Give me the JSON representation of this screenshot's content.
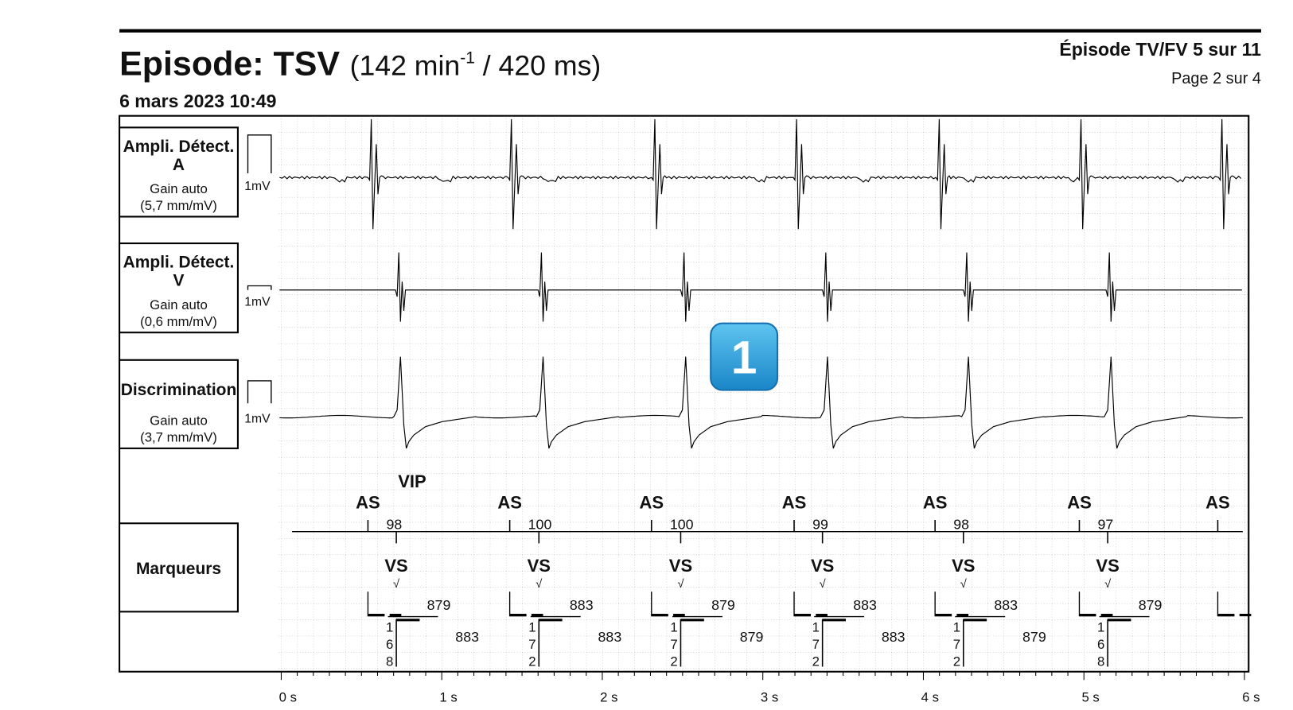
{
  "header": {
    "title": "Episode: TSV",
    "rate": [
      "(142 min",
      "-1",
      " / 420 ms)"
    ],
    "episode": "Épisode TV/FV 5 sur 11",
    "page": "Page 2 sur 4",
    "date": "6 mars 2023 10:49"
  },
  "channels": [
    {
      "title": "Ampli. Détect.",
      "sub": "A",
      "gain": "Gain auto",
      "scale": "(5,7 mm/mV)",
      "cal": "1mV"
    },
    {
      "title": "Ampli. Détect.",
      "sub": "V",
      "gain": "Gain auto",
      "scale": "(0,6 mm/mV)",
      "cal": "1mV"
    },
    {
      "title": "Discrimination",
      "gain": "Gain auto",
      "scale": "(3,7 mm/mV)",
      "cal": "1mV"
    }
  ],
  "markers": {
    "title": "Marqueurs",
    "vip": "VIP",
    "atrial": [
      {
        "label": "AS",
        "interval": "98"
      },
      {
        "label": "AS",
        "interval": "100"
      },
      {
        "label": "AS",
        "interval": "100"
      },
      {
        "label": "AS",
        "interval": "99"
      },
      {
        "label": "AS",
        "interval": "98"
      },
      {
        "label": "AS",
        "interval": "97"
      },
      {
        "label": "AS"
      }
    ],
    "ventricular": [
      {
        "label": "VS",
        "check": "√",
        "interval": "879",
        "digits": [
          "1",
          "6",
          "8"
        ],
        "interval2": "883"
      },
      {
        "label": "VS",
        "check": "√",
        "interval": "883",
        "digits": [
          "1",
          "7",
          "2"
        ],
        "interval2": "883"
      },
      {
        "label": "VS",
        "check": "√",
        "interval": "879",
        "digits": [
          "1",
          "7",
          "2"
        ],
        "interval2": "879"
      },
      {
        "label": "VS",
        "check": "√",
        "interval": "883",
        "digits": [
          "1",
          "7",
          "2"
        ],
        "interval2": "883"
      },
      {
        "label": "VS",
        "check": "√",
        "interval": "883",
        "digits": [
          "1",
          "7",
          "2"
        ],
        "interval2": "879"
      },
      {
        "label": "VS",
        "check": "√",
        "interval": "879",
        "digits": [
          "1",
          "6",
          "8"
        ]
      }
    ]
  },
  "time_axis": [
    "0 s",
    "1 s",
    "2 s",
    "3 s",
    "4 s",
    "5 s",
    "6 s"
  ],
  "badge": "1"
}
